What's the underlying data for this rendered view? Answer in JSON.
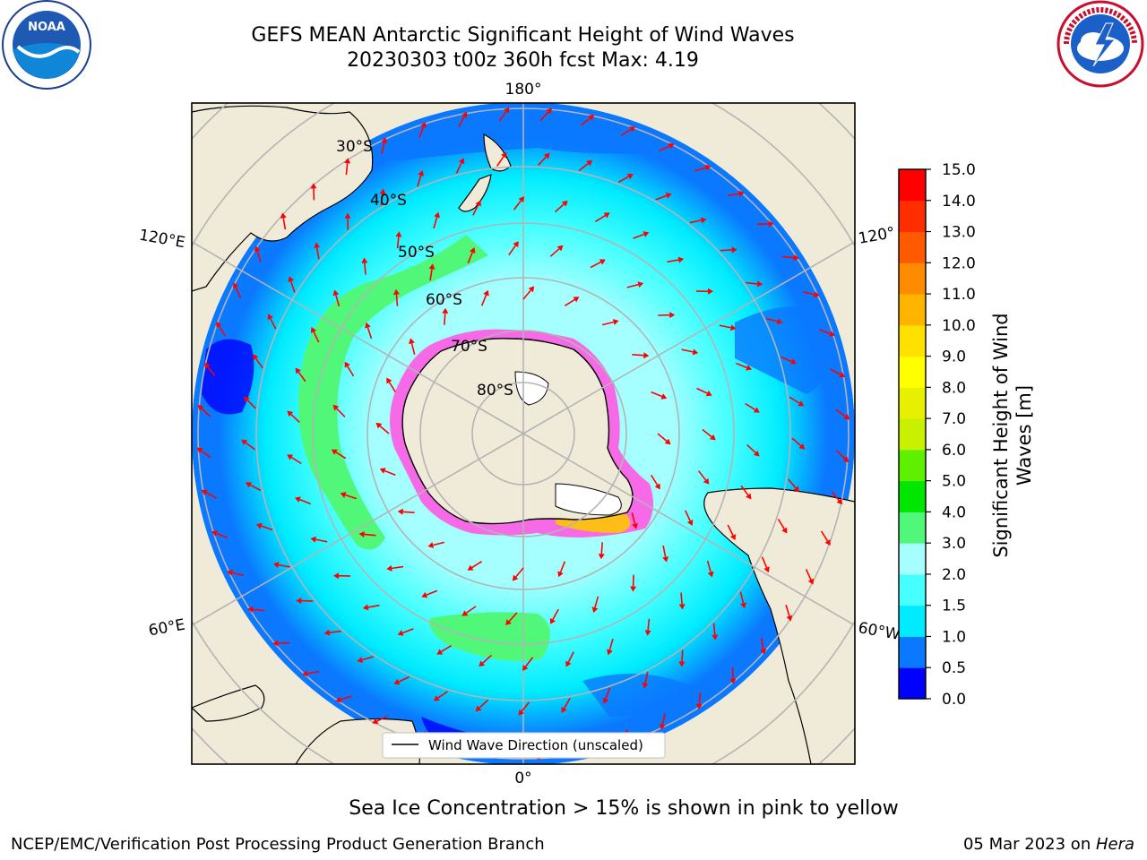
{
  "title_line1": "GEFS MEAN Antarctic Significant Height of Wind Waves",
  "title_line2": "20230303 t00z 360h fcst   Max: 4.19",
  "longitude_labels": {
    "top": "180°",
    "bottom": "0°",
    "left_upper": "120°E",
    "left_lower": "60°E",
    "right_upper": "120°",
    "right_lower": "60°W"
  },
  "latitude_labels": [
    "30°S",
    "40°S",
    "50°S",
    "60°S",
    "70°S",
    "80°S"
  ],
  "legend_label": "Wind Wave Direction (unscaled)",
  "sea_ice_note": "Sea Ice Concentration > 15% is shown in pink to yellow",
  "footer_left": "NCEP/EMC/Verification Post Processing Product Generation Branch",
  "footer_date": "05 Mar 2023 on ",
  "footer_host": "Hera",
  "colorbar": {
    "label_line1": "Significant Height of Wind",
    "label_line2": "Waves [m]",
    "ticks": [
      "0.0",
      "0.5",
      "1.0",
      "1.5",
      "2.0",
      "3.0",
      "4.0",
      "5.0",
      "6.0",
      "7.0",
      "8.0",
      "9.0",
      "10.0",
      "11.0",
      "12.0",
      "13.0",
      "14.0",
      "15.0"
    ],
    "colors": [
      "#0000ff",
      "#0a78ff",
      "#00ebff",
      "#48ffff",
      "#a6ffff",
      "#50f778",
      "#00e600",
      "#5ff000",
      "#c8f000",
      "#e6f000",
      "#ffff00",
      "#ffe100",
      "#ffb400",
      "#ff8c00",
      "#ff5a00",
      "#ff2d00",
      "#ff0000"
    ]
  },
  "logos": {
    "noaa_text": "NOAA",
    "nws_text": "NATIONAL WEATHER SERVICE"
  },
  "chart_data": {
    "type": "heatmap",
    "projection": "south-polar-stereographic",
    "variable": "Significant Height of Wind Waves",
    "units": "m",
    "max_value": 4.19,
    "levels": [
      0.0,
      0.5,
      1.0,
      1.5,
      2.0,
      3.0,
      4.0,
      5.0,
      6.0,
      7.0,
      8.0,
      9.0,
      10.0,
      11.0,
      12.0,
      13.0,
      14.0,
      15.0
    ],
    "parallels_deg_s": [
      30,
      40,
      50,
      60,
      70,
      80
    ],
    "meridians_deg": [
      0,
      60,
      120,
      180,
      -120,
      -60
    ],
    "grid": true
  }
}
